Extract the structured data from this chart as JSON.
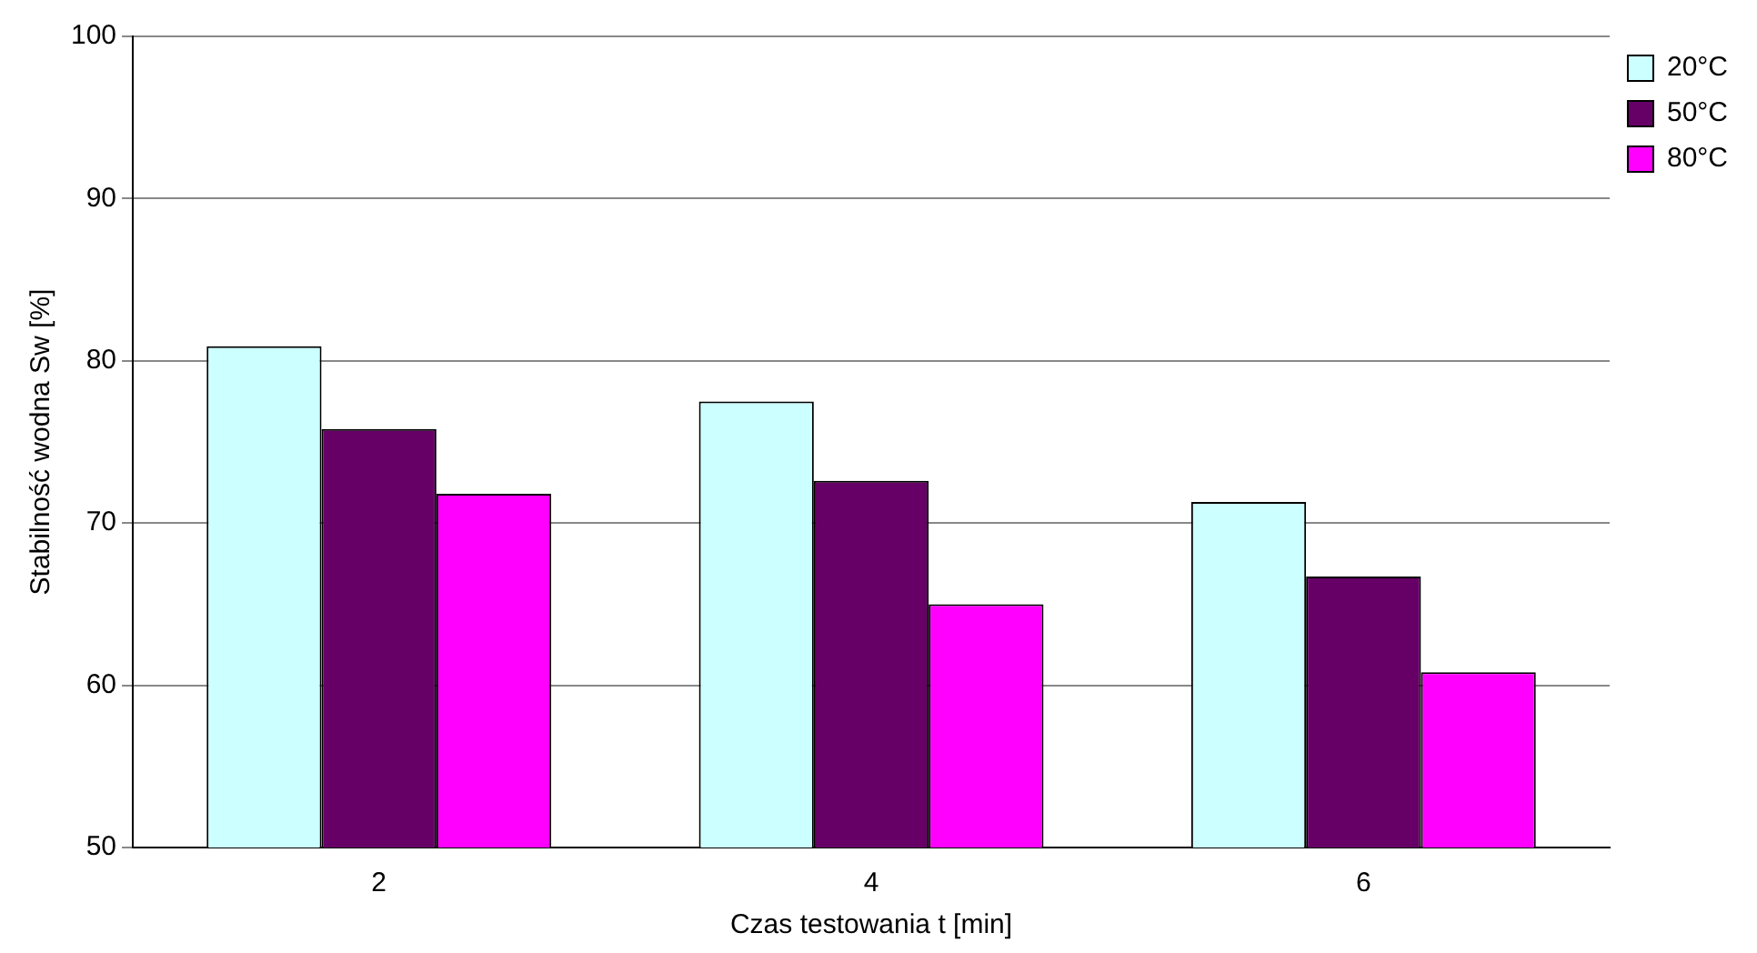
{
  "chart_data": {
    "type": "bar",
    "xlabel": "Czas testowania t [min]",
    "ylabel": "Stabilność wodna Sw [%]",
    "categories": [
      "2",
      "4",
      "6"
    ],
    "series": [
      {
        "name": "20°C",
        "color": "#ccffff",
        "values": [
          80.9,
          77.5,
          71.3
        ]
      },
      {
        "name": "50°C",
        "color": "#660066",
        "values": [
          75.8,
          72.6,
          66.7
        ]
      },
      {
        "name": "80°C",
        "color": "#ff00ff",
        "values": [
          71.8,
          65.0,
          60.8
        ]
      }
    ],
    "ylim": [
      50,
      100
    ],
    "yticks": [
      50,
      60,
      70,
      80,
      90,
      100
    ],
    "grid": "y",
    "legend": "top right"
  }
}
